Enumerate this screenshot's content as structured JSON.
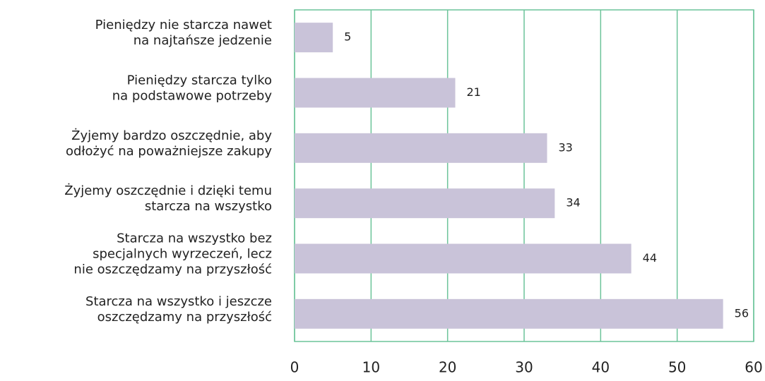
{
  "chart_data": {
    "type": "barh",
    "categories": [
      [
        "Pieniędzy nie starcza nawet",
        "na najtańsze jedzenie"
      ],
      [
        "Pieniędzy starcza tylko",
        "na podstawowe potrzeby"
      ],
      [
        "Żyjemy bardzo oszczędnie, aby",
        "odłożyć na poważniejsze zakupy"
      ],
      [
        "Żyjemy oszczędnie i dzięki temu",
        "starcza na wszystko"
      ],
      [
        "Starcza na wszystko bez",
        "specjalnych wyrzeczeń, lecz",
        "nie oszczędzamy na przyszłość"
      ],
      [
        "Starcza na wszystko i jeszcze",
        "oszczędzamy na przyszłość"
      ]
    ],
    "values": [
      5,
      21,
      33,
      34,
      44,
      56
    ],
    "color": "#c9c3d9",
    "grid_color": "#6cc49a",
    "xlim": [
      0,
      60
    ],
    "xticks": [
      0,
      10,
      20,
      30,
      40,
      50,
      60
    ],
    "grid": true
  }
}
